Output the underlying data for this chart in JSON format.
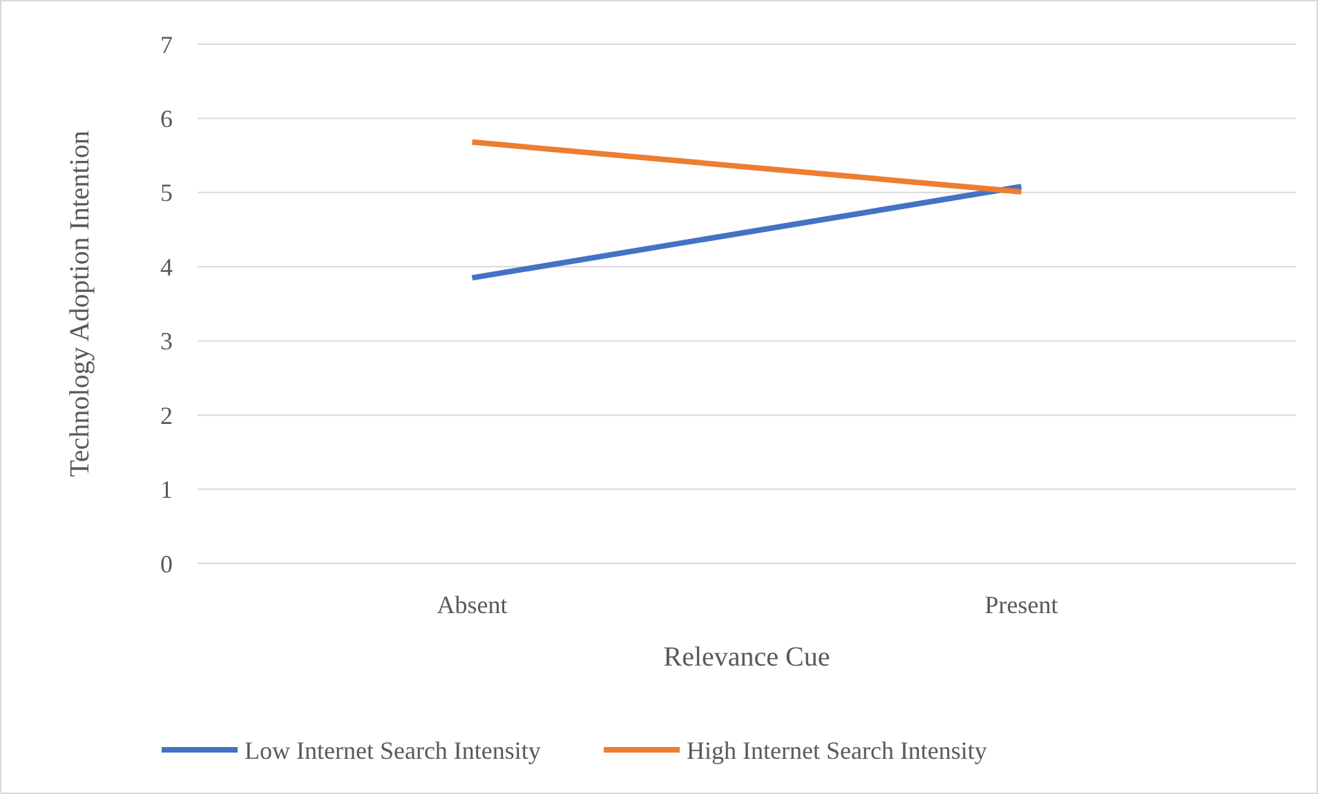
{
  "chart_data": {
    "type": "line",
    "xlabel": "Relevance Cue",
    "ylabel": "Technology Adoption Intention",
    "categories": [
      "Absent",
      "Present"
    ],
    "series": [
      {
        "name": "Low Internet Search Intensity",
        "color": "#4472c4",
        "values": [
          3.85,
          5.08
        ]
      },
      {
        "name": "High Internet Search Intensity",
        "color": "#ed7d31",
        "values": [
          5.68,
          5.01
        ]
      }
    ],
    "ylim": [
      0,
      7
    ],
    "yticks": [
      0,
      1,
      2,
      3,
      4,
      5,
      6,
      7
    ],
    "grid": "y",
    "legend": "bottom",
    "marker": "none",
    "line_style": "solid"
  }
}
